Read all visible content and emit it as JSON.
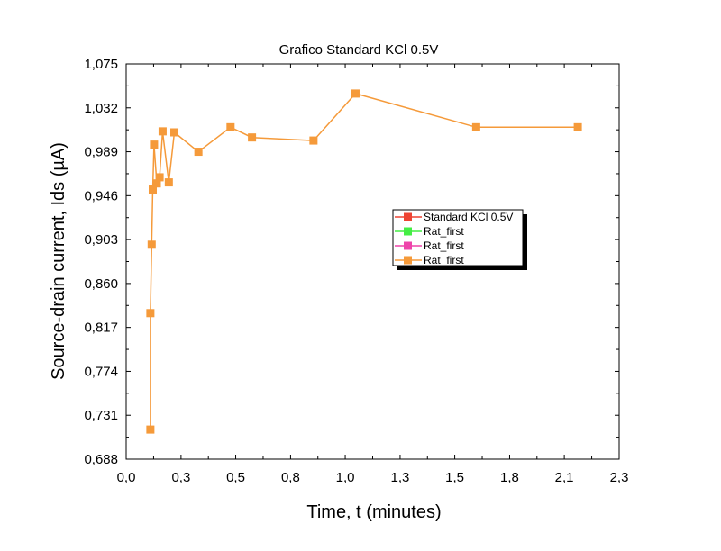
{
  "chart_data": {
    "type": "line",
    "title": "Grafico Standard KCl 0.5V",
    "xlabel": "Time, t (minutes)",
    "ylabel": "Source-drain current, Ids (µA)",
    "xlim": [
      0.0,
      2.3
    ],
    "ylim": [
      0.688,
      1.075
    ],
    "x_ticks": [
      "0,0",
      "0,3",
      "0,5",
      "0,8",
      "1,0",
      "1,3",
      "1,5",
      "1,8",
      "2,1",
      "2,3"
    ],
    "x_tick_values": [
      0.0,
      0.256,
      0.511,
      0.767,
      1.022,
      1.278,
      1.533,
      1.789,
      2.044,
      2.3
    ],
    "y_ticks": [
      "0,688",
      "0,731",
      "0,774",
      "0,817",
      "0,860",
      "0,903",
      "0,946",
      "0,989",
      "1,032",
      "1,075"
    ],
    "y_tick_values": [
      0.688,
      0.731,
      0.774,
      0.817,
      0.86,
      0.903,
      0.946,
      0.989,
      1.032,
      1.075
    ],
    "grid": false,
    "legend_position": "center-right",
    "legend": [
      {
        "name": "Standard KCl 0.5V",
        "color": "#ee4433"
      },
      {
        "name": "Rat_first",
        "color": "#44ee44"
      },
      {
        "name": "Rat_first",
        "color": "#ee44aa"
      },
      {
        "name": "Rat_first",
        "color": "#f59a3a"
      }
    ],
    "series": [
      {
        "name": "Rat_first",
        "color": "#f59a3a",
        "x": [
          0.113,
          0.113,
          0.119,
          0.124,
          0.13,
          0.143,
          0.156,
          0.17,
          0.199,
          0.225,
          0.337,
          0.487,
          0.587,
          0.874,
          1.07,
          1.633,
          2.107
        ],
        "y": [
          0.717,
          0.831,
          0.898,
          0.952,
          0.996,
          0.958,
          0.964,
          1.009,
          0.959,
          1.008,
          0.989,
          1.013,
          1.003,
          1.0,
          1.046,
          1.013,
          1.013
        ]
      }
    ]
  }
}
